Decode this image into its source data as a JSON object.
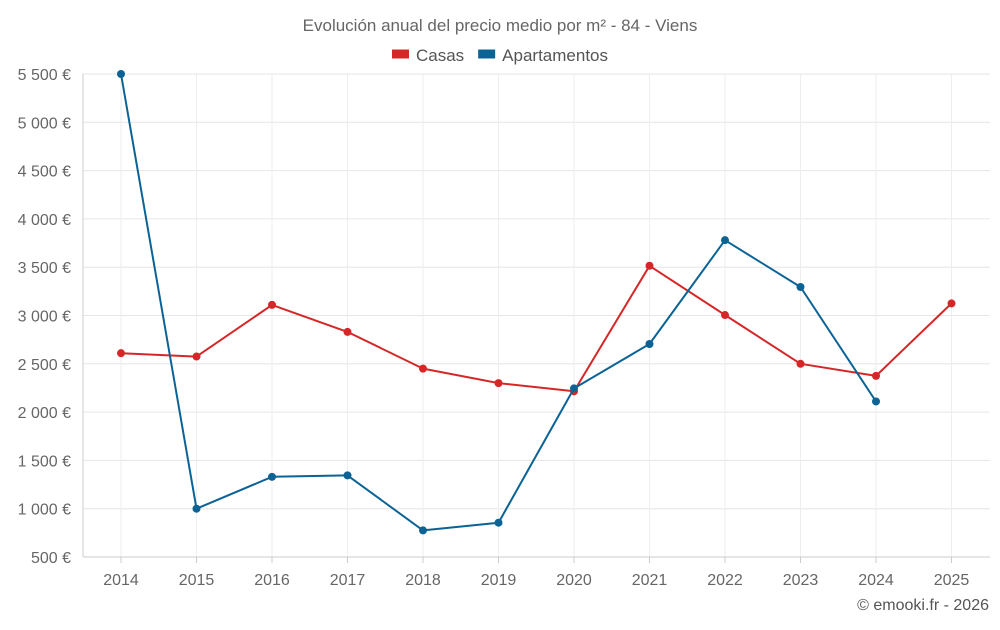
{
  "chart_data": {
    "type": "line",
    "title": "Evolución anual del precio medio por m² - 84 - Viens",
    "categories": [
      "2014",
      "2015",
      "2016",
      "2017",
      "2018",
      "2019",
      "2020",
      "2021",
      "2022",
      "2023",
      "2024",
      "2025"
    ],
    "ylim": [
      500,
      5500
    ],
    "yticks": [
      500,
      1000,
      1500,
      2000,
      2500,
      3000,
      3500,
      4000,
      4500,
      5000,
      5500
    ],
    "ytick_labels": [
      "500 €",
      "1 000 €",
      "1 500 €",
      "2 000 €",
      "2 500 €",
      "3 000 €",
      "3 500 €",
      "4 000 €",
      "4 500 €",
      "5 000 €",
      "5 500 €"
    ],
    "xlabel": "",
    "ylabel": "",
    "grid": true,
    "legend_position": "top-center",
    "series": [
      {
        "name": "Casas",
        "color": "#d62728",
        "values": [
          2610,
          2575,
          3110,
          2830,
          2450,
          2300,
          2215,
          3515,
          3005,
          2500,
          2375,
          3125
        ]
      },
      {
        "name": "Apartamentos",
        "color": "#0b6395",
        "values": [
          5500,
          1000,
          1330,
          1345,
          775,
          855,
          2245,
          2705,
          3780,
          3295,
          2110,
          null
        ]
      }
    ]
  },
  "credit": "© emooki.fr - 2026"
}
